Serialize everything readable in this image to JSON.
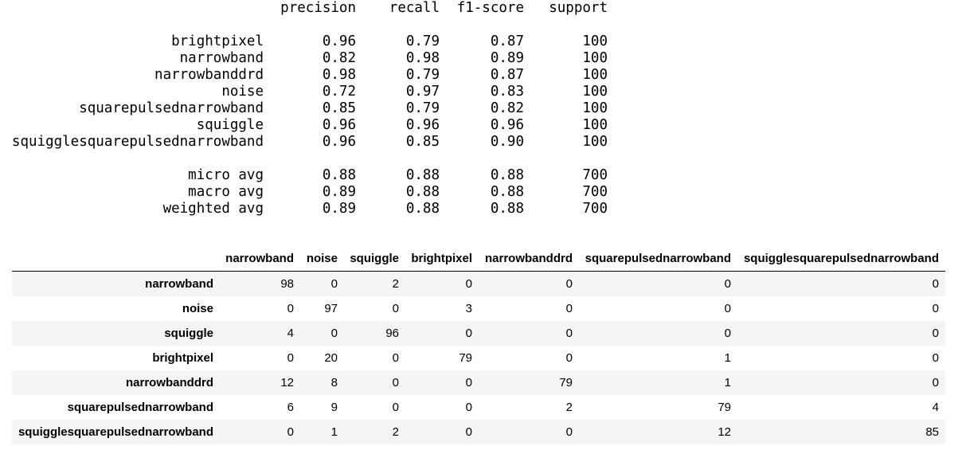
{
  "report": {
    "header": [
      "precision",
      "recall",
      "f1-score",
      "support"
    ],
    "rows": [
      {
        "label": "brightpixel",
        "values": [
          "0.96",
          "0.79",
          "0.87",
          "100"
        ]
      },
      {
        "label": "narrowband",
        "values": [
          "0.82",
          "0.98",
          "0.89",
          "100"
        ]
      },
      {
        "label": "narrowbanddrd",
        "values": [
          "0.98",
          "0.79",
          "0.87",
          "100"
        ]
      },
      {
        "label": "noise",
        "values": [
          "0.72",
          "0.97",
          "0.83",
          "100"
        ]
      },
      {
        "label": "squarepulsednarrowband",
        "values": [
          "0.85",
          "0.79",
          "0.82",
          "100"
        ]
      },
      {
        "label": "squiggle",
        "values": [
          "0.96",
          "0.96",
          "0.96",
          "100"
        ]
      },
      {
        "label": "squigglesquarepulsednarrowband",
        "values": [
          "0.96",
          "0.85",
          "0.90",
          "100"
        ]
      }
    ],
    "averages": [
      {
        "label": "micro avg",
        "values": [
          "0.88",
          "0.88",
          "0.88",
          "700"
        ]
      },
      {
        "label": "macro avg",
        "values": [
          "0.89",
          "0.88",
          "0.88",
          "700"
        ]
      },
      {
        "label": "weighted avg",
        "values": [
          "0.89",
          "0.88",
          "0.88",
          "700"
        ]
      }
    ]
  },
  "table": {
    "columns": [
      "narrowband",
      "noise",
      "squiggle",
      "brightpixel",
      "narrowbanddrd",
      "squarepulsednarrowband",
      "squigglesquarepulsednarrowband"
    ],
    "rows": [
      {
        "label": "narrowband",
        "values": [
          98,
          0,
          2,
          0,
          0,
          0,
          0
        ]
      },
      {
        "label": "noise",
        "values": [
          0,
          97,
          0,
          3,
          0,
          0,
          0
        ]
      },
      {
        "label": "squiggle",
        "values": [
          4,
          0,
          96,
          0,
          0,
          0,
          0
        ]
      },
      {
        "label": "brightpixel",
        "values": [
          0,
          20,
          0,
          79,
          0,
          1,
          0
        ]
      },
      {
        "label": "narrowbanddrd",
        "values": [
          12,
          8,
          0,
          0,
          79,
          1,
          0
        ]
      },
      {
        "label": "squarepulsednarrowband",
        "values": [
          6,
          9,
          0,
          0,
          2,
          79,
          4
        ]
      },
      {
        "label": "squigglesquarepulsednarrowband",
        "values": [
          0,
          1,
          2,
          0,
          0,
          12,
          85
        ]
      }
    ]
  }
}
